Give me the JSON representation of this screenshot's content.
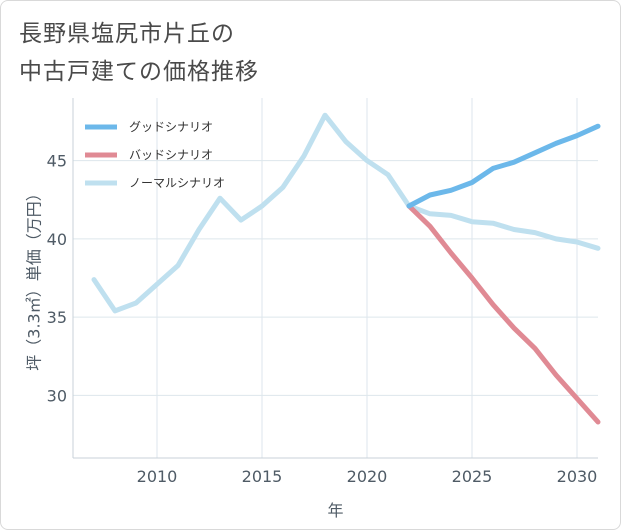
{
  "title_line1": "長野県塩尻市片丘の",
  "title_line2": "中古戸建ての価格推移",
  "chart_data": {
    "type": "line",
    "xlabel": "年",
    "ylabel": "坪（3.3㎡）単価（万円）",
    "xlim": [
      2006,
      2031
    ],
    "ylim": [
      26,
      49
    ],
    "xticks": [
      2010,
      2015,
      2020,
      2025,
      2030
    ],
    "yticks": [
      30,
      35,
      40,
      45
    ],
    "grid": true,
    "legend_position": "top-left",
    "series": [
      {
        "name": "グッドシナリオ",
        "color": "#6cb8ea",
        "x": [
          2022,
          2023,
          2024,
          2025,
          2026,
          2027,
          2028,
          2029,
          2030,
          2031
        ],
        "y": [
          42.1,
          42.8,
          43.1,
          43.6,
          44.5,
          44.9,
          45.5,
          46.1,
          46.6,
          47.2
        ]
      },
      {
        "name": "バッドシナリオ",
        "color": "#e08a94",
        "x": [
          2022,
          2023,
          2024,
          2025,
          2026,
          2027,
          2028,
          2029,
          2030,
          2031
        ],
        "y": [
          42.1,
          40.8,
          39.1,
          37.5,
          35.8,
          34.3,
          33.0,
          31.3,
          29.8,
          28.3
        ]
      },
      {
        "name": "ノーマルシナリオ",
        "color": "#bfe0ef",
        "x": [
          2007,
          2008,
          2009,
          2010,
          2011,
          2012,
          2013,
          2014,
          2015,
          2016,
          2017,
          2018,
          2019,
          2020,
          2021,
          2022,
          2023,
          2024,
          2025,
          2026,
          2027,
          2028,
          2029,
          2030,
          2031
        ],
        "y": [
          37.4,
          35.4,
          35.9,
          37.1,
          38.3,
          40.6,
          42.6,
          41.2,
          42.1,
          43.3,
          45.3,
          47.9,
          46.2,
          45.0,
          44.1,
          42.1,
          41.6,
          41.5,
          41.1,
          41.0,
          40.6,
          40.4,
          40.0,
          39.8,
          39.4
        ]
      }
    ]
  }
}
